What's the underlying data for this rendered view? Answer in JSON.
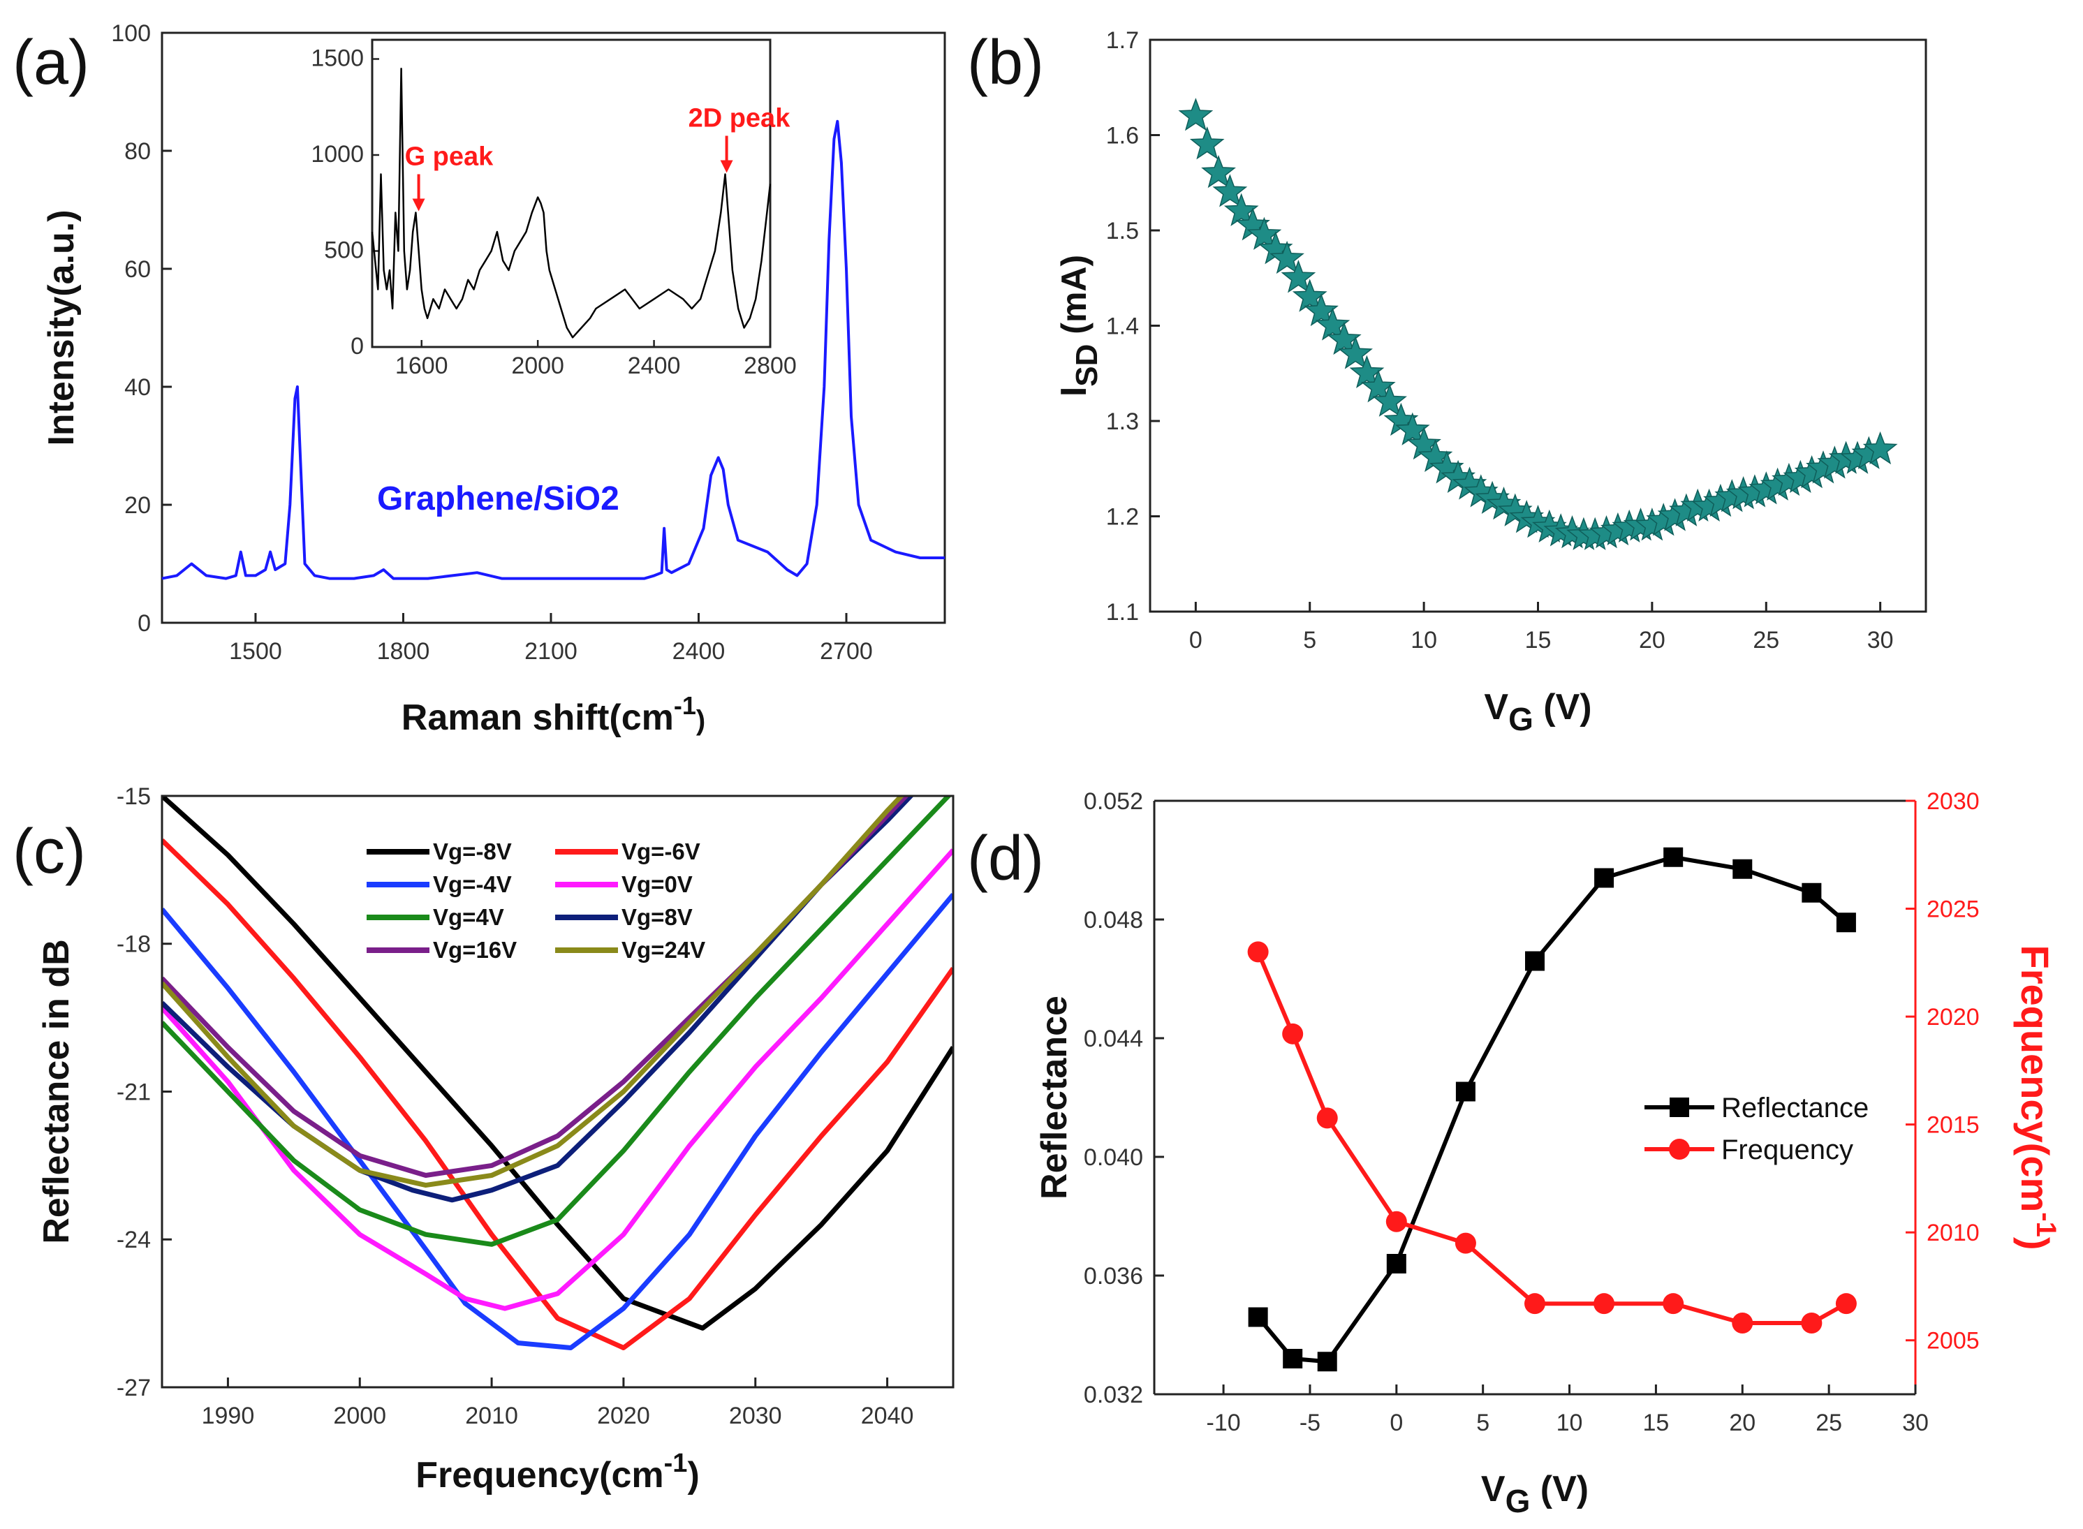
{
  "chart_data": [
    {
      "id": "a",
      "panel_label": "(a)",
      "type": "line",
      "xlabel": "Raman shift(cm",
      "xlabel_sup": "-1",
      "xlabel_close": ")",
      "ylabel": "Intensity(a.u.)",
      "xlim": [
        1310,
        2900
      ],
      "ylim": [
        0,
        100
      ],
      "xticks": [
        1500,
        1800,
        2100,
        2400,
        2700
      ],
      "yticks": [
        0,
        20,
        40,
        60,
        80,
        100
      ],
      "annotation": "Graphene/SiO2",
      "color": "#1a1aff",
      "series": [
        {
          "name": "Graphene/SiO2",
          "x": [
            1310,
            1340,
            1370,
            1400,
            1440,
            1460,
            1470,
            1480,
            1500,
            1520,
            1530,
            1540,
            1560,
            1570,
            1580,
            1585,
            1590,
            1600,
            1620,
            1650,
            1700,
            1740,
            1760,
            1780,
            1800,
            1850,
            1900,
            1950,
            2000,
            2050,
            2100,
            2150,
            2200,
            2250,
            2290,
            2310,
            2325,
            2330,
            2335,
            2345,
            2380,
            2410,
            2425,
            2440,
            2450,
            2460,
            2480,
            2510,
            2540,
            2580,
            2600,
            2620,
            2640,
            2655,
            2665,
            2675,
            2682,
            2690,
            2700,
            2710,
            2725,
            2750,
            2800,
            2850,
            2900
          ],
          "y": [
            7.5,
            8,
            10,
            8,
            7.5,
            8,
            12,
            8,
            8,
            9,
            12,
            9,
            10,
            20,
            38,
            40,
            30,
            10,
            8,
            7.5,
            7.5,
            8,
            9,
            7.5,
            7.5,
            7.5,
            8,
            8.5,
            7.5,
            7.5,
            7.5,
            7.5,
            7.5,
            7.5,
            7.5,
            8,
            8.5,
            16,
            9,
            8.5,
            10,
            16,
            25,
            28,
            26,
            20,
            14,
            13,
            12,
            9,
            8,
            10,
            20,
            40,
            65,
            82,
            85,
            78,
            60,
            35,
            20,
            14,
            12,
            11,
            11
          ]
        }
      ],
      "inset": {
        "type": "line",
        "xlim": [
          1430,
          2800
        ],
        "ylim": [
          0,
          1600
        ],
        "xticks": [
          1600,
          2000,
          2400,
          2800
        ],
        "yticks": [
          0,
          500,
          1000,
          1500
        ],
        "annotations": [
          {
            "text": "G peak",
            "x": 1590,
            "y": 700
          },
          {
            "text": "2D peak",
            "x": 2650,
            "y": 900
          }
        ],
        "color": "#000000",
        "x": [
          1430,
          1450,
          1460,
          1470,
          1480,
          1490,
          1500,
          1510,
          1520,
          1530,
          1540,
          1550,
          1560,
          1570,
          1580,
          1590,
          1600,
          1610,
          1620,
          1640,
          1660,
          1680,
          1700,
          1720,
          1740,
          1760,
          1780,
          1800,
          1820,
          1840,
          1860,
          1880,
          1900,
          1920,
          1940,
          1960,
          1980,
          2000,
          2010,
          2020,
          2030,
          2040,
          2060,
          2080,
          2100,
          2120,
          2150,
          2180,
          2200,
          2250,
          2300,
          2350,
          2400,
          2450,
          2500,
          2530,
          2560,
          2590,
          2610,
          2630,
          2645,
          2655,
          2670,
          2690,
          2710,
          2730,
          2750,
          2770,
          2785,
          2800
        ],
        "y": [
          600,
          300,
          900,
          400,
          300,
          400,
          200,
          700,
          500,
          1450,
          500,
          300,
          400,
          600,
          700,
          500,
          300,
          200,
          150,
          250,
          200,
          300,
          250,
          200,
          250,
          350,
          300,
          400,
          450,
          500,
          600,
          450,
          400,
          500,
          550,
          600,
          700,
          780,
          750,
          700,
          500,
          400,
          300,
          200,
          100,
          50,
          100,
          150,
          200,
          250,
          300,
          200,
          250,
          300,
          250,
          200,
          250,
          400,
          500,
          700,
          900,
          700,
          400,
          200,
          100,
          150,
          250,
          450,
          650,
          850
        ]
      }
    },
    {
      "id": "b",
      "panel_label": "(b)",
      "type": "scatter",
      "marker": "star",
      "color": "#1e8c86",
      "xlabel": "V",
      "xlabel_sub": "G",
      "xlabel_unit": " (V)",
      "ylabel": "I",
      "ylabel_sub": "SD",
      "ylabel_unit": " (mA)",
      "xlim": [
        -2,
        32
      ],
      "ylim": [
        1.1,
        1.7
      ],
      "xticks": [
        0,
        5,
        10,
        15,
        20,
        25,
        30
      ],
      "yticks": [
        1.1,
        1.2,
        1.3,
        1.4,
        1.5,
        1.6,
        1.7
      ],
      "x": [
        0,
        0.5,
        1,
        1.5,
        2,
        2.5,
        3,
        3.5,
        4,
        4.5,
        5,
        5.5,
        6,
        6.5,
        7,
        7.5,
        8,
        8.5,
        9,
        9.5,
        10,
        10.5,
        11,
        11.5,
        12,
        12.5,
        13,
        13.5,
        14,
        14.5,
        15,
        15.5,
        16,
        16.5,
        17,
        17.5,
        18,
        18.5,
        19,
        19.5,
        20,
        20.5,
        21,
        21.5,
        22,
        22.5,
        23,
        23.5,
        24,
        24.5,
        25,
        25.5,
        26,
        26.5,
        27,
        27.5,
        28,
        28.5,
        29,
        29.5,
        30
      ],
      "y": [
        1.62,
        1.59,
        1.56,
        1.54,
        1.52,
        1.505,
        1.495,
        1.48,
        1.47,
        1.45,
        1.43,
        1.415,
        1.4,
        1.385,
        1.37,
        1.35,
        1.335,
        1.32,
        1.3,
        1.29,
        1.275,
        1.262,
        1.25,
        1.24,
        1.233,
        1.225,
        1.218,
        1.212,
        1.205,
        1.198,
        1.193,
        1.188,
        1.184,
        1.182,
        1.18,
        1.18,
        1.182,
        1.185,
        1.188,
        1.19,
        1.19,
        1.195,
        1.2,
        1.205,
        1.21,
        1.21,
        1.215,
        1.22,
        1.223,
        1.225,
        1.228,
        1.232,
        1.237,
        1.24,
        1.245,
        1.25,
        1.255,
        1.26,
        1.26,
        1.265,
        1.27
      ]
    },
    {
      "id": "c",
      "panel_label": "(c)",
      "type": "line",
      "xlabel": "Frequency(cm",
      "xlabel_sup": "-1",
      "xlabel_close": ")",
      "ylabel": "Reflectance in dB",
      "xlim": [
        1985,
        2045
      ],
      "ylim": [
        -27,
        -15
      ],
      "xticks": [
        1990,
        2000,
        2010,
        2020,
        2030,
        2040
      ],
      "yticks": [
        -27,
        -24,
        -21,
        -18,
        -15
      ],
      "series": [
        {
          "name": "Vg=-8V",
          "color": "#000000",
          "x": [
            1985,
            1990,
            1995,
            2000,
            2005,
            2010,
            2015,
            2020,
            2026,
            2030,
            2035,
            2040,
            2045
          ],
          "y": [
            -15,
            -16.2,
            -17.6,
            -19.1,
            -20.6,
            -22.1,
            -23.7,
            -25.2,
            -25.8,
            -25,
            -23.7,
            -22.2,
            -20.1
          ]
        },
        {
          "name": "Vg=-6V",
          "color": "#ff1a1a",
          "x": [
            1985,
            1990,
            1995,
            2000,
            2005,
            2010,
            2015,
            2020,
            2025,
            2030,
            2035,
            2040,
            2045
          ],
          "y": [
            -15.9,
            -17.2,
            -18.7,
            -20.3,
            -22,
            -23.9,
            -25.6,
            -26.2,
            -25.2,
            -23.5,
            -21.9,
            -20.4,
            -18.5
          ]
        },
        {
          "name": "Vg=-4V",
          "color": "#1a3cff",
          "x": [
            1985,
            1990,
            1995,
            2000,
            2005,
            2008,
            2012,
            2016,
            2020,
            2025,
            2030,
            2035,
            2040,
            2045
          ],
          "y": [
            -17.3,
            -18.9,
            -20.6,
            -22.4,
            -24.2,
            -25.3,
            -26.1,
            -26.2,
            -25.4,
            -23.9,
            -21.9,
            -20.2,
            -18.6,
            -17
          ]
        },
        {
          "name": "Vg=0V",
          "color": "#ff1aff",
          "x": [
            1985,
            1990,
            1995,
            2000,
            2005,
            2008,
            2011,
            2015,
            2020,
            2025,
            2030,
            2035,
            2040,
            2045
          ],
          "y": [
            -19.3,
            -20.8,
            -22.6,
            -23.9,
            -24.7,
            -25.2,
            -25.4,
            -25.1,
            -23.9,
            -22.1,
            -20.5,
            -19.1,
            -17.6,
            -16.1
          ]
        },
        {
          "name": "Vg=4V",
          "color": "#1a8a1a",
          "x": [
            1985,
            1990,
            1995,
            2000,
            2005,
            2010,
            2015,
            2020,
            2025,
            2030,
            2035,
            2040,
            2045
          ],
          "y": [
            -19.6,
            -21,
            -22.4,
            -23.4,
            -23.9,
            -24.1,
            -23.6,
            -22.2,
            -20.6,
            -19.1,
            -17.7,
            -16.3,
            -14.9
          ]
        },
        {
          "name": "Vg=8V",
          "color": "#0d1f7a",
          "x": [
            1985,
            1990,
            1995,
            2000,
            2004,
            2007,
            2010,
            2015,
            2020,
            2025,
            2030,
            2035,
            2040,
            2045
          ],
          "y": [
            -19.2,
            -20.5,
            -21.7,
            -22.6,
            -23,
            -23.2,
            -23,
            -22.5,
            -21.2,
            -19.8,
            -18.3,
            -16.8,
            -15.5,
            -14.1
          ]
        },
        {
          "name": "Vg=16V",
          "color": "#7a1f8a",
          "x": [
            1985,
            1990,
            1995,
            2000,
            2005,
            2010,
            2015,
            2020,
            2025,
            2030,
            2035,
            2040,
            2045
          ],
          "y": [
            -18.7,
            -20.1,
            -21.4,
            -22.3,
            -22.7,
            -22.5,
            -21.9,
            -20.8,
            -19.5,
            -18.2,
            -16.8,
            -15.4,
            -14
          ]
        },
        {
          "name": "Vg=24V",
          "color": "#8a8a1a",
          "x": [
            1985,
            1990,
            1995,
            2000,
            2005,
            2010,
            2015,
            2020,
            2025,
            2030,
            2035,
            2040,
            2045
          ],
          "y": [
            -18.8,
            -20.3,
            -21.7,
            -22.6,
            -22.9,
            -22.7,
            -22.1,
            -21,
            -19.6,
            -18.2,
            -16.8,
            -15.3,
            -13.9
          ]
        }
      ]
    },
    {
      "id": "d",
      "panel_label": "(d)",
      "type": "line",
      "xlabel": "V",
      "xlabel_sub": "G",
      "xlabel_unit": " (V)",
      "ylabel": "Reflectance",
      "ylabel_right": "Frequency(cm",
      "ylabel_right_sup": "-1",
      "ylabel_right_close": ")",
      "right_color": "#ff1a1a",
      "xlim": [
        -14,
        30
      ],
      "ylim": [
        0.032,
        0.052
      ],
      "ylim_right": [
        2002.5,
        2030
      ],
      "xticks": [
        -10,
        -5,
        0,
        5,
        10,
        15,
        20,
        25,
        30
      ],
      "yticks": [
        0.032,
        0.036,
        0.04,
        0.044,
        0.048,
        0.052
      ],
      "yticks_right": [
        2005,
        2010,
        2015,
        2020,
        2025,
        2030
      ],
      "series": [
        {
          "name": "Reflectance",
          "axis": "left",
          "marker": "square",
          "color": "#000000",
          "x": [
            -8,
            -6,
            -4,
            0,
            4,
            8,
            12,
            16,
            20,
            24,
            26
          ],
          "y": [
            0.0346,
            0.0332,
            0.0331,
            0.0364,
            0.0422,
            0.0466,
            0.0494,
            0.0501,
            0.0497,
            0.0489,
            0.0479
          ]
        },
        {
          "name": "Frequency",
          "axis": "right",
          "marker": "circle",
          "color": "#ff1a1a",
          "x": [
            -8,
            -6,
            -4,
            0,
            4,
            8,
            12,
            16,
            20,
            24,
            26
          ],
          "y": [
            2023,
            2019.2,
            2015.3,
            2010.5,
            2009.5,
            2006.7,
            2006.7,
            2006.7,
            2005.8,
            2005.8,
            2006.7
          ]
        }
      ]
    }
  ]
}
